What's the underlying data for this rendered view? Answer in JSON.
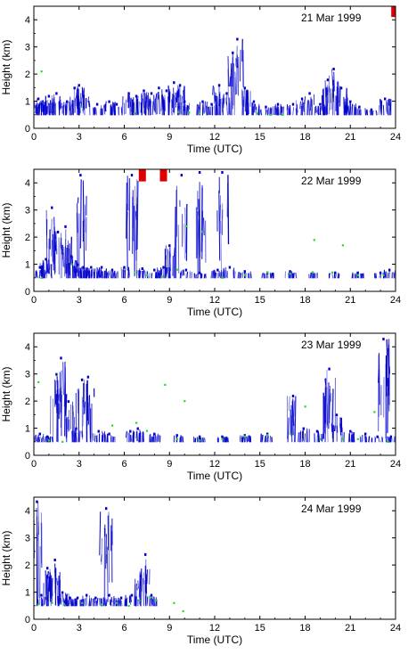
{
  "chart_data": [
    {
      "type": "scatter",
      "title": "21 Mar 1999",
      "xlabel": "Time (UTC)",
      "ylabel": "Height (km)",
      "xlim": [
        0,
        24
      ],
      "ylim": [
        0,
        4.5
      ],
      "xticks": [
        0,
        3,
        6,
        9,
        12,
        15,
        18,
        21,
        24
      ],
      "yticks": [
        0,
        1,
        2,
        3,
        4
      ],
      "grid": false,
      "series": [
        {
          "color": "#0000cc",
          "style": "streaks",
          "points": [
            [
              0.3,
              1.1
            ],
            [
              0.5,
              0.9
            ],
            [
              1.0,
              1.2
            ],
            [
              1.5,
              1.3
            ],
            [
              2.2,
              1.0
            ],
            [
              2.7,
              1.5
            ],
            [
              3.0,
              1.6
            ],
            [
              3.3,
              1.2
            ],
            [
              4.2,
              0.9
            ],
            [
              5.0,
              1.0
            ],
            [
              5.5,
              0.9
            ],
            [
              6.3,
              1.3
            ],
            [
              6.8,
              1.2
            ],
            [
              7.3,
              1.4
            ],
            [
              7.8,
              1.3
            ],
            [
              8.3,
              1.5
            ],
            [
              8.8,
              1.4
            ],
            [
              9.3,
              1.7
            ],
            [
              9.7,
              1.6
            ],
            [
              10.0,
              1.0
            ],
            [
              11.2,
              1.0
            ],
            [
              11.8,
              0.9
            ],
            [
              12.3,
              1.6
            ],
            [
              12.8,
              1.3
            ],
            [
              13.2,
              2.8
            ],
            [
              13.5,
              3.3
            ],
            [
              14.0,
              1.5
            ],
            [
              14.6,
              1.0
            ],
            [
              15.4,
              0.8
            ],
            [
              16.2,
              0.9
            ],
            [
              17.2,
              0.9
            ],
            [
              17.8,
              1.1
            ],
            [
              18.3,
              1.3
            ],
            [
              19.0,
              0.9
            ],
            [
              19.5,
              1.8
            ],
            [
              19.9,
              2.2
            ],
            [
              20.4,
              1.5
            ],
            [
              21.0,
              1.0
            ],
            [
              21.6,
              0.8
            ],
            [
              22.4,
              0.7
            ],
            [
              23.3,
              1.1
            ]
          ]
        },
        {
          "color": "#22dd22",
          "style": "dots",
          "points": [
            [
              0.5,
              2.1
            ],
            [
              3.1,
              0.8
            ],
            [
              6.7,
              0.55
            ],
            [
              9.6,
              0.6
            ],
            [
              10.3,
              0.58
            ],
            [
              11.0,
              0.55
            ],
            [
              14.8,
              0.55
            ],
            [
              15.7,
              0.5
            ],
            [
              16.5,
              0.5
            ]
          ]
        },
        {
          "color": "#dd0000",
          "style": "blocks",
          "points": [
            [
              23.95,
              4.3
            ]
          ]
        }
      ]
    },
    {
      "type": "scatter",
      "title": "22 Mar 1999",
      "xlabel": "Time (UTC)",
      "ylabel": "Height (km)",
      "xlim": [
        0,
        24
      ],
      "ylim": [
        0,
        4.5
      ],
      "xticks": [
        0,
        3,
        6,
        9,
        12,
        15,
        18,
        21,
        24
      ],
      "yticks": [
        0,
        1,
        2,
        3,
        4
      ],
      "grid": false,
      "series": [
        {
          "color": "#0000cc",
          "style": "streaks",
          "points": [
            [
              0.4,
              0.9
            ],
            [
              0.8,
              1.2
            ],
            [
              1.2,
              3.1
            ],
            [
              1.6,
              2.2
            ],
            [
              2.1,
              2.4
            ],
            [
              2.5,
              1.3
            ],
            [
              2.9,
              1.0
            ],
            [
              3.3,
              0.9
            ],
            [
              3.8,
              0.9
            ],
            [
              4.5,
              0.9
            ],
            [
              5.2,
              0.8
            ],
            [
              6.0,
              0.9
            ],
            [
              7.2,
              0.85
            ],
            [
              8.0,
              0.8
            ],
            [
              8.6,
              0.9
            ],
            [
              9.0,
              1.7
            ],
            [
              10.1,
              0.8
            ],
            [
              11.0,
              0.7
            ],
            [
              12.2,
              0.8
            ],
            [
              13.0,
              0.9
            ],
            [
              14.0,
              0.75
            ],
            [
              15.5,
              0.7
            ],
            [
              17.0,
              0.75
            ],
            [
              18.5,
              0.7
            ],
            [
              20.0,
              0.7
            ],
            [
              21.5,
              0.7
            ],
            [
              23.0,
              0.7
            ],
            [
              23.6,
              0.8
            ],
            [
              3.1,
              4.3
            ],
            [
              6.5,
              4.3
            ],
            [
              9.8,
              4.3
            ],
            [
              11.0,
              4.4
            ],
            [
              12.5,
              4.4
            ]
          ]
        },
        {
          "color": "#22dd22",
          "style": "dots",
          "points": [
            [
              0.5,
              0.5
            ],
            [
              2.5,
              1.0
            ],
            [
              6.7,
              0.7
            ],
            [
              7.5,
              0.6
            ],
            [
              8.5,
              0.55
            ],
            [
              9.5,
              0.8
            ],
            [
              10.1,
              2.4
            ],
            [
              11.2,
              2.2
            ],
            [
              12.5,
              0.5
            ],
            [
              14.0,
              0.6
            ],
            [
              15.5,
              0.7
            ],
            [
              17.0,
              0.65
            ],
            [
              18.5,
              0.7
            ],
            [
              18.6,
              1.9
            ],
            [
              19.8,
              0.7
            ],
            [
              20.5,
              1.7
            ],
            [
              21.5,
              0.6
            ],
            [
              23.2,
              0.6
            ]
          ]
        },
        {
          "color": "#dd0000",
          "style": "blocks",
          "points": [
            [
              7.2,
              4.25
            ],
            [
              8.6,
              4.25
            ]
          ]
        }
      ]
    },
    {
      "type": "scatter",
      "title": "23 Mar 1999",
      "xlabel": "Time (UTC)",
      "ylabel": "Height (km)",
      "xlim": [
        0,
        24
      ],
      "ylim": [
        0,
        4.5
      ],
      "xticks": [
        0,
        3,
        6,
        9,
        12,
        15,
        18,
        21,
        24
      ],
      "yticks": [
        0,
        1,
        2,
        3,
        4
      ],
      "grid": false,
      "series": [
        {
          "color": "#0000cc",
          "style": "streaks",
          "points": [
            [
              0.4,
              0.8
            ],
            [
              0.9,
              0.7
            ],
            [
              1.5,
              3.0
            ],
            [
              1.8,
              3.6
            ],
            [
              2.3,
              2.0
            ],
            [
              2.8,
              1.0
            ],
            [
              3.2,
              2.8
            ],
            [
              3.6,
              2.9
            ],
            [
              4.3,
              0.9
            ],
            [
              5.0,
              0.8
            ],
            [
              6.4,
              0.9
            ],
            [
              6.9,
              1.0
            ],
            [
              8.0,
              0.8
            ],
            [
              9.5,
              0.75
            ],
            [
              11.0,
              0.7
            ],
            [
              12.5,
              0.7
            ],
            [
              14.0,
              0.75
            ],
            [
              15.5,
              0.8
            ],
            [
              17.2,
              2.2
            ],
            [
              17.9,
              1.0
            ],
            [
              18.8,
              0.9
            ],
            [
              19.6,
              3.2
            ],
            [
              20.1,
              1.5
            ],
            [
              21.0,
              0.9
            ],
            [
              22.0,
              0.8
            ],
            [
              22.8,
              0.7
            ],
            [
              23.2,
              4.3
            ],
            [
              23.7,
              0.7
            ]
          ]
        },
        {
          "color": "#22dd22",
          "style": "dots",
          "points": [
            [
              0.3,
              2.7
            ],
            [
              1.0,
              0.55
            ],
            [
              1.9,
              0.5
            ],
            [
              5.2,
              1.1
            ],
            [
              6.8,
              1.2
            ],
            [
              7.5,
              0.9
            ],
            [
              8.7,
              2.6
            ],
            [
              9.5,
              0.6
            ],
            [
              10.0,
              2.0
            ],
            [
              11.0,
              0.55
            ],
            [
              12.5,
              0.6
            ],
            [
              14.0,
              0.7
            ],
            [
              15.5,
              0.75
            ],
            [
              17.0,
              0.8
            ],
            [
              18.0,
              1.8
            ],
            [
              19.0,
              0.6
            ],
            [
              20.5,
              0.6
            ],
            [
              21.5,
              0.6
            ],
            [
              22.6,
              1.6
            ],
            [
              23.5,
              0.5
            ]
          ]
        },
        {
          "color": "#dd0000",
          "style": "blocks",
          "points": []
        }
      ]
    },
    {
      "type": "scatter",
      "title": "24 Mar 1999",
      "xlabel": "Time (UTC)",
      "ylabel": "Height (km)",
      "xlim": [
        0,
        24
      ],
      "ylim": [
        0,
        4.5
      ],
      "xticks": [
        0,
        3,
        6,
        9,
        12,
        15,
        18,
        21,
        24
      ],
      "yticks": [
        0,
        1,
        2,
        3,
        4
      ],
      "grid": false,
      "series": [
        {
          "color": "#0000cc",
          "style": "streaks",
          "points": [
            [
              0.2,
              4.35
            ],
            [
              0.5,
              0.9
            ],
            [
              0.9,
              1.9
            ],
            [
              1.4,
              2.2
            ],
            [
              1.9,
              1.0
            ],
            [
              2.4,
              0.8
            ],
            [
              2.9,
              0.8
            ],
            [
              3.5,
              0.9
            ],
            [
              4.1,
              0.8
            ],
            [
              4.8,
              4.1
            ],
            [
              5.0,
              0.9
            ],
            [
              5.8,
              0.8
            ],
            [
              6.5,
              0.9
            ],
            [
              7.1,
              1.6
            ],
            [
              7.4,
              2.4
            ],
            [
              7.8,
              0.9
            ]
          ]
        },
        {
          "color": "#22dd22",
          "style": "dots",
          "points": [
            [
              0.3,
              0.55
            ],
            [
              1.2,
              0.6
            ],
            [
              2.0,
              0.55
            ],
            [
              3.2,
              0.6
            ],
            [
              4.5,
              0.55
            ],
            [
              5.5,
              0.6
            ],
            [
              6.3,
              0.5
            ],
            [
              7.0,
              0.7
            ],
            [
              7.7,
              0.8
            ],
            [
              8.1,
              0.7
            ],
            [
              9.3,
              0.6
            ],
            [
              9.9,
              0.3
            ]
          ]
        },
        {
          "color": "#dd0000",
          "style": "blocks",
          "points": []
        }
      ]
    }
  ]
}
